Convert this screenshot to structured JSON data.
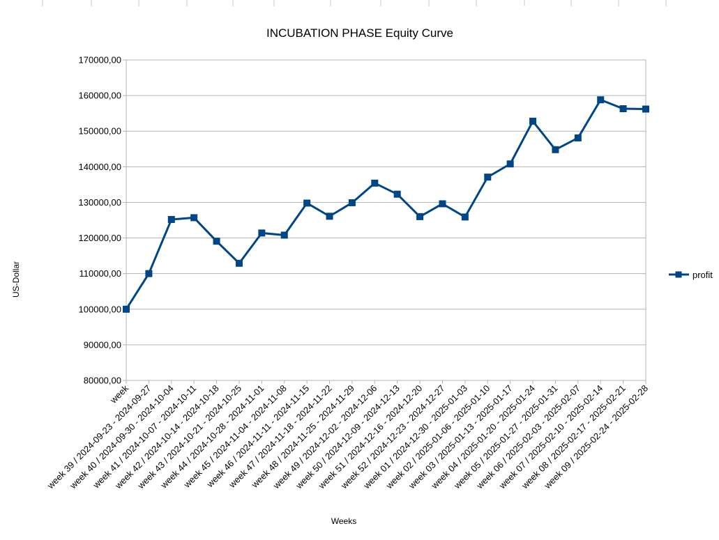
{
  "chart_data": {
    "type": "line",
    "title": "INCUBATION PHASE Equity Curve",
    "xlabel": "Weeks",
    "ylabel": "US-Dollar",
    "ylim": [
      80000,
      170000
    ],
    "ytick_step": 10000,
    "yticks": [
      "80000,00",
      "90000,00",
      "100000,00",
      "110000,00",
      "120000,00",
      "130000,00",
      "140000,00",
      "150000,00",
      "160000,00",
      "170000,00"
    ],
    "grid": true,
    "legend_position": "right",
    "line_color": "#004586",
    "categories": [
      "week",
      "week 39 / 2024-09-23 - 2024-09-27",
      "week 40 / 2024-09-30 - 2024-10-04",
      "week 41 / 2024-10-07 - 2024-10-11",
      "week 42 / 2024-10-14 - 2024-10-18",
      "week 43 / 2024-10-21 - 2024-10-25",
      "week 44 / 2024-10-28 - 2024-11-01",
      "week 45 / 2024-11-04 - 2024-11-08",
      "week 46 / 2024-11-11 - 2024-11-15",
      "week 47 / 2024-11-18 - 2024-11-22",
      "week 48 / 2024-11-25 - 2024-11-29",
      "week 49 / 2024-12-02 - 2024-12-06",
      "week 50 / 2024-12-09 - 2024-12-13",
      "week 51 / 2024-12-16 - 2024-12-20",
      "week 52 / 2024-12-23 - 2024-12-27",
      "week 01 / 2024-12-30 - 2025-01-03",
      "week 02 / 2025-01-06 - 2025-01-10",
      "week 03 / 2025-01-13 - 2025-01-17",
      "week 04 / 2025-01-20 - 2025-01-24",
      "week 05 / 2025-01-27 - 2025-01-31",
      "week 06 / 2025-02-03 - 2025-02-07",
      "week 07 / 2025-02-10 - 2025-02-14",
      "week 08 / 2025-02-17 - 2025-02-21",
      "week 09 / 2025-02-24 - 2025-02-28"
    ],
    "series": [
      {
        "name": "profit",
        "values": [
          100000,
          110000,
          125200,
          125700,
          119100,
          112900,
          121400,
          120800,
          129800,
          126100,
          129900,
          135400,
          132300,
          126000,
          129600,
          125900,
          137100,
          140800,
          152800,
          144800,
          148100,
          158800,
          156300,
          156200
        ]
      }
    ]
  }
}
